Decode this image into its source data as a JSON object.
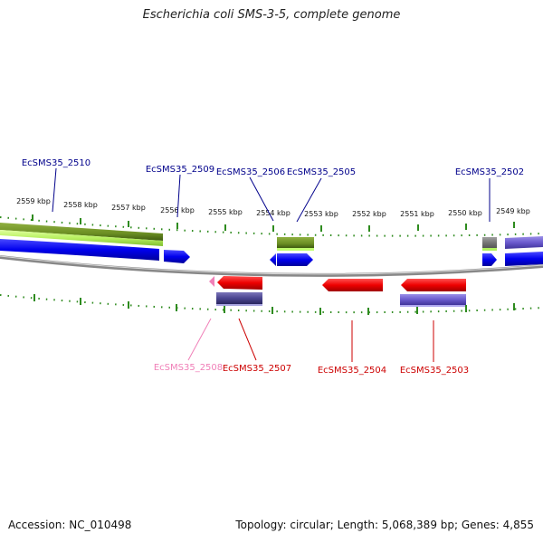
{
  "title": "Escherichia coli SMS-3-5, complete genome",
  "accession_text": "Accession: NC_010498",
  "topology_text": "Topology: circular; Length: 5,068,389 bp; Genes: 4,855",
  "kbp_labels": [
    "2559 kbp",
    "2558 kbp",
    "2557 kbp",
    "2556 kbp",
    "2555 kbp",
    "2554 kbp",
    "2553 kbp",
    "2552 kbp",
    "2551 kbp",
    "2550 kbp",
    "2549 kbp"
  ],
  "gene_labels_top": [
    "EcSMS35_2510",
    "EcSMS35_2509",
    "EcSMS35_2506",
    "EcSMS35_2505",
    "EcSMS35_2502"
  ],
  "gene_labels_bottom": [
    "EcSMS35_2508",
    "EcSMS35_2507",
    "EcSMS35_2504",
    "EcSMS35_2503"
  ],
  "colors": {
    "forward_gene": "#0000ee",
    "reverse_gene": "#ee0000",
    "pseudo_gene": "#f080b8",
    "label_top": "#00008b",
    "label_bottom": "#cc0000",
    "cds_green": "#6b8e23",
    "lightgreen": "#b8f060",
    "purple_feature": "#6a5acd",
    "tick_green": "#2e8b1e",
    "backbone": "#808080"
  }
}
